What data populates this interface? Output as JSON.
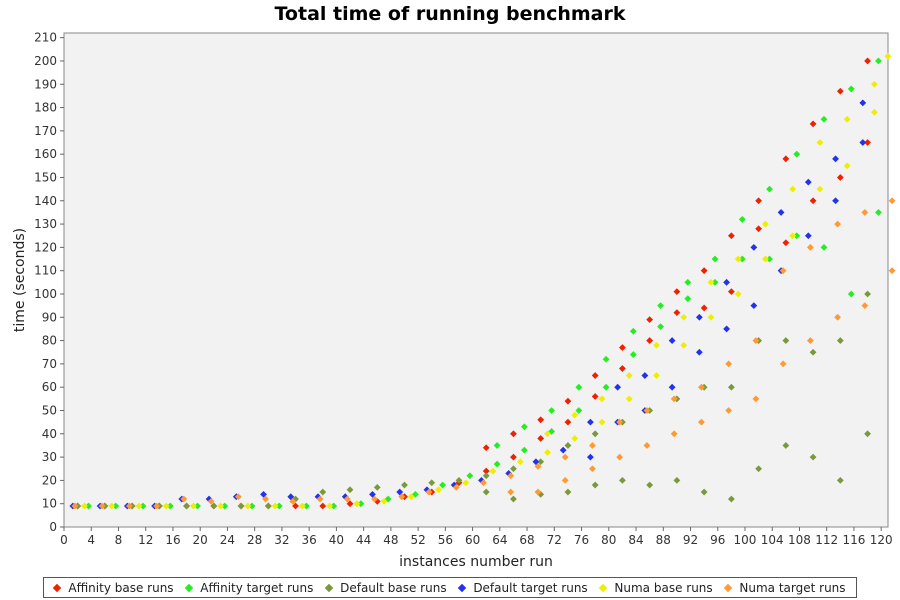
{
  "chart_data": {
    "type": "scatter",
    "title": "Total time of running benchmark",
    "xlabel": "instances number run",
    "ylabel": "time (seconds)",
    "xlim": [
      0,
      121
    ],
    "ylim": [
      0,
      212
    ],
    "x_ticks": [
      0,
      4,
      8,
      12,
      16,
      20,
      24,
      28,
      32,
      36,
      40,
      44,
      48,
      52,
      56,
      60,
      64,
      68,
      72,
      76,
      80,
      84,
      88,
      92,
      96,
      100,
      104,
      108,
      112,
      116,
      120
    ],
    "y_ticks": [
      0,
      10,
      20,
      30,
      40,
      50,
      60,
      70,
      80,
      90,
      100,
      110,
      120,
      130,
      140,
      150,
      160,
      170,
      180,
      190,
      200,
      210
    ],
    "legend_position": "bottom",
    "grid": false,
    "series": [
      {
        "name": "Affinity base runs",
        "color": "#ee2200",
        "offset": 0,
        "points": [
          [
            2,
            9
          ],
          [
            6,
            9
          ],
          [
            10,
            9
          ],
          [
            14,
            9
          ],
          [
            18,
            9
          ],
          [
            22,
            9
          ],
          [
            26,
            9
          ],
          [
            30,
            9
          ],
          [
            34,
            9
          ],
          [
            38,
            9
          ],
          [
            42,
            10
          ],
          [
            46,
            11
          ],
          [
            50,
            13
          ],
          [
            54,
            15
          ],
          [
            58,
            19
          ],
          [
            62,
            24
          ],
          [
            62,
            34
          ],
          [
            66,
            30
          ],
          [
            66,
            40
          ],
          [
            70,
            38
          ],
          [
            70,
            46
          ],
          [
            74,
            45
          ],
          [
            74,
            54
          ],
          [
            78,
            56
          ],
          [
            78,
            65
          ],
          [
            82,
            68
          ],
          [
            82,
            77
          ],
          [
            86,
            80
          ],
          [
            86,
            89
          ],
          [
            90,
            92
          ],
          [
            90,
            101
          ],
          [
            94,
            94
          ],
          [
            94,
            110
          ],
          [
            98,
            101
          ],
          [
            98,
            125
          ],
          [
            102,
            140
          ],
          [
            102,
            128
          ],
          [
            106,
            158
          ],
          [
            106,
            122
          ],
          [
            110,
            173
          ],
          [
            110,
            140
          ],
          [
            114,
            187
          ],
          [
            114,
            150
          ],
          [
            118,
            200
          ],
          [
            118,
            165
          ]
        ]
      },
      {
        "name": "Affinity target runs",
        "color": "#22ee22",
        "offset": 0.6,
        "points": [
          [
            3,
            9
          ],
          [
            7,
            9
          ],
          [
            11,
            9
          ],
          [
            15,
            9
          ],
          [
            19,
            9
          ],
          [
            23,
            9
          ],
          [
            27,
            9
          ],
          [
            31,
            9
          ],
          [
            35,
            9
          ],
          [
            39,
            9
          ],
          [
            43,
            10
          ],
          [
            47,
            12
          ],
          [
            51,
            14
          ],
          [
            55,
            18
          ],
          [
            59,
            22
          ],
          [
            63,
            27
          ],
          [
            63,
            35
          ],
          [
            67,
            33
          ],
          [
            67,
            43
          ],
          [
            71,
            41
          ],
          [
            71,
            50
          ],
          [
            75,
            50
          ],
          [
            75,
            60
          ],
          [
            79,
            60
          ],
          [
            79,
            72
          ],
          [
            83,
            74
          ],
          [
            83,
            84
          ],
          [
            87,
            86
          ],
          [
            87,
            95
          ],
          [
            91,
            98
          ],
          [
            91,
            105
          ],
          [
            95,
            105
          ],
          [
            95,
            115
          ],
          [
            99,
            115
          ],
          [
            99,
            132
          ],
          [
            103,
            145
          ],
          [
            103,
            115
          ],
          [
            107,
            160
          ],
          [
            107,
            125
          ],
          [
            111,
            175
          ],
          [
            111,
            120
          ],
          [
            115,
            188
          ],
          [
            115,
            100
          ],
          [
            119,
            200
          ],
          [
            119,
            135
          ]
        ]
      },
      {
        "name": "Default base runs",
        "color": "#7a9a3a",
        "offset": 0,
        "points": [
          [
            2,
            9
          ],
          [
            6,
            9
          ],
          [
            10,
            9
          ],
          [
            14,
            9
          ],
          [
            18,
            9
          ],
          [
            22,
            9
          ],
          [
            26,
            9
          ],
          [
            30,
            9
          ],
          [
            34,
            12
          ],
          [
            38,
            15
          ],
          [
            42,
            16
          ],
          [
            46,
            17
          ],
          [
            50,
            18
          ],
          [
            54,
            19
          ],
          [
            58,
            20
          ],
          [
            62,
            22
          ],
          [
            62,
            15
          ],
          [
            66,
            25
          ],
          [
            66,
            12
          ],
          [
            70,
            28
          ],
          [
            70,
            14
          ],
          [
            74,
            35
          ],
          [
            74,
            15
          ],
          [
            78,
            40
          ],
          [
            78,
            18
          ],
          [
            82,
            45
          ],
          [
            82,
            20
          ],
          [
            86,
            50
          ],
          [
            86,
            18
          ],
          [
            90,
            55
          ],
          [
            90,
            20
          ],
          [
            94,
            60
          ],
          [
            94,
            15
          ],
          [
            98,
            60
          ],
          [
            98,
            12
          ],
          [
            102,
            80
          ],
          [
            102,
            25
          ],
          [
            106,
            80
          ],
          [
            106,
            35
          ],
          [
            110,
            75
          ],
          [
            110,
            30
          ],
          [
            114,
            80
          ],
          [
            114,
            20
          ],
          [
            118,
            100
          ],
          [
            118,
            40
          ]
        ]
      },
      {
        "name": "Default target runs",
        "color": "#2233ee",
        "offset": 0.3,
        "points": [
          [
            1,
            9
          ],
          [
            5,
            9
          ],
          [
            9,
            9
          ],
          [
            13,
            9
          ],
          [
            17,
            12
          ],
          [
            21,
            12
          ],
          [
            25,
            13
          ],
          [
            29,
            14
          ],
          [
            33,
            13
          ],
          [
            37,
            13
          ],
          [
            41,
            13
          ],
          [
            45,
            14
          ],
          [
            49,
            15
          ],
          [
            53,
            16
          ],
          [
            57,
            18
          ],
          [
            61,
            20
          ],
          [
            65,
            23
          ],
          [
            69,
            28
          ],
          [
            73,
            33
          ],
          [
            77,
            45
          ],
          [
            77,
            30
          ],
          [
            81,
            60
          ],
          [
            81,
            45
          ],
          [
            85,
            65
          ],
          [
            85,
            50
          ],
          [
            89,
            80
          ],
          [
            89,
            60
          ],
          [
            93,
            90
          ],
          [
            93,
            75
          ],
          [
            97,
            105
          ],
          [
            97,
            85
          ],
          [
            101,
            120
          ],
          [
            101,
            95
          ],
          [
            105,
            135
          ],
          [
            105,
            110
          ],
          [
            109,
            148
          ],
          [
            109,
            125
          ],
          [
            113,
            158
          ],
          [
            113,
            140
          ],
          [
            117,
            182
          ],
          [
            117,
            165
          ]
        ]
      },
      {
        "name": "Numa base runs",
        "color": "#eeee00",
        "offset": 0,
        "points": [
          [
            3,
            9
          ],
          [
            7,
            9
          ],
          [
            11,
            9
          ],
          [
            15,
            9
          ],
          [
            19,
            9
          ],
          [
            23,
            9
          ],
          [
            27,
            9
          ],
          [
            31,
            9
          ],
          [
            35,
            9
          ],
          [
            39,
            9
          ],
          [
            43,
            10
          ],
          [
            47,
            11
          ],
          [
            51,
            13
          ],
          [
            55,
            16
          ],
          [
            59,
            19
          ],
          [
            63,
            24
          ],
          [
            67,
            28
          ],
          [
            71,
            32
          ],
          [
            71,
            40
          ],
          [
            75,
            38
          ],
          [
            75,
            48
          ],
          [
            79,
            55
          ],
          [
            79,
            45
          ],
          [
            83,
            65
          ],
          [
            83,
            55
          ],
          [
            87,
            78
          ],
          [
            87,
            65
          ],
          [
            91,
            90
          ],
          [
            91,
            78
          ],
          [
            95,
            105
          ],
          [
            95,
            90
          ],
          [
            99,
            115
          ],
          [
            99,
            100
          ],
          [
            103,
            130
          ],
          [
            103,
            115
          ],
          [
            107,
            145
          ],
          [
            107,
            125
          ],
          [
            111,
            165
          ],
          [
            111,
            145
          ],
          [
            115,
            175
          ],
          [
            115,
            155
          ],
          [
            119,
            190
          ],
          [
            119,
            178
          ],
          [
            121,
            202
          ]
        ]
      },
      {
        "name": "Numa target runs",
        "color": "#ff9933",
        "offset": 0.6,
        "points": [
          [
            1,
            9
          ],
          [
            5,
            9
          ],
          [
            9,
            9
          ],
          [
            13,
            9
          ],
          [
            17,
            12
          ],
          [
            21,
            11
          ],
          [
            25,
            13
          ],
          [
            29,
            12
          ],
          [
            33,
            11
          ],
          [
            37,
            12
          ],
          [
            41,
            12
          ],
          [
            45,
            12
          ],
          [
            49,
            13
          ],
          [
            53,
            15
          ],
          [
            57,
            17
          ],
          [
            61,
            19
          ],
          [
            65,
            22
          ],
          [
            65,
            15
          ],
          [
            69,
            26
          ],
          [
            69,
            15
          ],
          [
            73,
            30
          ],
          [
            73,
            20
          ],
          [
            77,
            35
          ],
          [
            77,
            25
          ],
          [
            81,
            45
          ],
          [
            81,
            30
          ],
          [
            85,
            50
          ],
          [
            85,
            35
          ],
          [
            89,
            55
          ],
          [
            89,
            40
          ],
          [
            93,
            60
          ],
          [
            93,
            45
          ],
          [
            97,
            70
          ],
          [
            97,
            50
          ],
          [
            101,
            80
          ],
          [
            101,
            55
          ],
          [
            105,
            110
          ],
          [
            105,
            70
          ],
          [
            109,
            120
          ],
          [
            109,
            80
          ],
          [
            113,
            130
          ],
          [
            113,
            90
          ],
          [
            117,
            135
          ],
          [
            117,
            95
          ],
          [
            121,
            140
          ],
          [
            121,
            110
          ]
        ]
      }
    ]
  }
}
